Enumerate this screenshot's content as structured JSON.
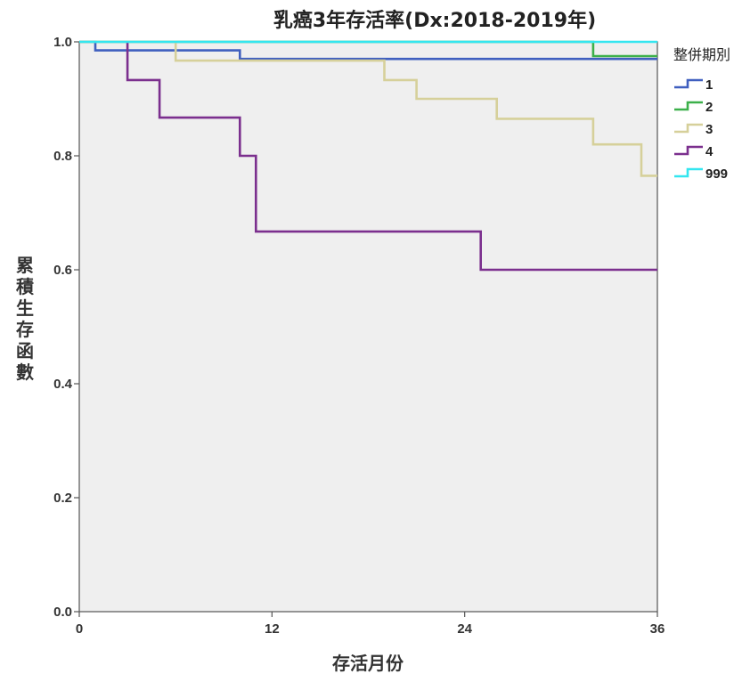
{
  "chart_data": {
    "type": "line",
    "title": "乳癌3年存活率(Dx:2018-2019年)",
    "xlabel": "存活月份",
    "ylabel": "累積生存函數",
    "xlim": [
      0,
      36
    ],
    "ylim": [
      0,
      1.0
    ],
    "xticks": [
      "0",
      "12",
      "24",
      "36"
    ],
    "yticks": [
      "0.0",
      "0.2",
      "0.4",
      "0.6",
      "0.8",
      "1.0"
    ],
    "legend_title": "整併期別",
    "legend_position": "right",
    "grid": false,
    "step": true,
    "series": [
      {
        "name": "1",
        "color": "#3f5fbf",
        "x": [
          0,
          1,
          1,
          10,
          10,
          36
        ],
        "y": [
          1.0,
          1.0,
          0.985,
          0.985,
          0.97,
          0.97
        ]
      },
      {
        "name": "2",
        "color": "#3cb04a",
        "x": [
          0,
          32,
          32,
          36
        ],
        "y": [
          1.0,
          1.0,
          0.975,
          0.975
        ]
      },
      {
        "name": "3",
        "color": "#d6d09a",
        "x": [
          0,
          6,
          6,
          19,
          19,
          21,
          21,
          26,
          26,
          32,
          32,
          35,
          35,
          36
        ],
        "y": [
          1.0,
          1.0,
          0.967,
          0.967,
          0.933,
          0.933,
          0.9,
          0.9,
          0.865,
          0.865,
          0.82,
          0.82,
          0.765,
          0.765
        ]
      },
      {
        "name": "4",
        "color": "#7b2f8e",
        "x": [
          3,
          3,
          5,
          5,
          10,
          10,
          11,
          11,
          25,
          25,
          36
        ],
        "y": [
          1.0,
          0.933,
          0.933,
          0.867,
          0.867,
          0.8,
          0.8,
          0.667,
          0.667,
          0.6,
          0.6
        ]
      },
      {
        "name": "999",
        "color": "#33e6f0",
        "x": [
          0,
          36
        ],
        "y": [
          1.0,
          1.0
        ]
      }
    ]
  }
}
